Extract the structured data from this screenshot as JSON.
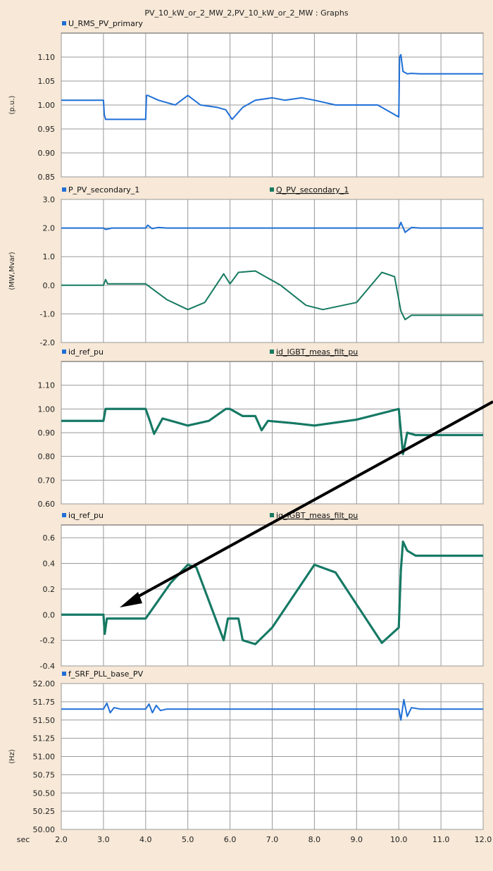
{
  "window": {
    "title": "PV_10_kW_or_2_MW_2,PV_10_kW_or_2_MW : Graphs"
  },
  "colors": {
    "blue": "#1f6fd6",
    "green": "#167a60",
    "grid": "#9a9a9a",
    "panel": "#ffffff",
    "background": "#f7e8d7"
  },
  "chart_data": [
    {
      "type": "line",
      "ylabel": "(p.u.)",
      "ylim": [
        0.85,
        1.15
      ],
      "yticks": [
        0.85,
        0.9,
        0.95,
        1.0,
        1.05,
        1.1
      ],
      "ytick_labels": [
        "0.85",
        "0.90",
        "0.95",
        "1.00",
        "1.05",
        "1.10"
      ],
      "series": [
        {
          "name": "U_RMS_PV_primary",
          "color": "#1f6fd6",
          "x": [
            2.0,
            3.0,
            3.02,
            3.05,
            4.0,
            4.02,
            4.05,
            4.3,
            4.7,
            5.0,
            5.3,
            5.7,
            5.9,
            6.05,
            6.1,
            6.3,
            6.6,
            7.0,
            7.3,
            7.7,
            8.0,
            8.5,
            9.0,
            9.5,
            10.0,
            10.02,
            10.05,
            10.1,
            10.2,
            10.3,
            10.5,
            11.0,
            12.0
          ],
          "y": [
            1.01,
            1.01,
            0.98,
            0.97,
            0.97,
            1.02,
            1.02,
            1.01,
            1.0,
            1.02,
            1.0,
            0.995,
            0.99,
            0.97,
            0.975,
            0.995,
            1.01,
            1.015,
            1.01,
            1.015,
            1.01,
            1.0,
            1.0,
            1.0,
            0.975,
            1.1,
            1.105,
            1.07,
            1.065,
            1.066,
            1.065,
            1.065,
            1.065
          ]
        }
      ]
    },
    {
      "type": "line",
      "ylabel": "(MW,Mvar)",
      "ylim": [
        -2.0,
        3.0
      ],
      "yticks": [
        -2.0,
        -1.0,
        0.0,
        1.0,
        2.0,
        3.0
      ],
      "ytick_labels": [
        "-2.0",
        "-1.0",
        "0.0",
        "1.0",
        "2.0",
        "3.0"
      ],
      "series": [
        {
          "name": "P_PV_secondary_1",
          "color": "#1f6fd6",
          "x": [
            2.0,
            3.0,
            3.05,
            3.2,
            4.0,
            4.05,
            4.15,
            4.3,
            4.5,
            5.0,
            6.0,
            7.0,
            8.0,
            9.0,
            10.0,
            10.05,
            10.15,
            10.3,
            10.5,
            12.0
          ],
          "y": [
            2.0,
            2.0,
            1.95,
            2.0,
            2.0,
            2.1,
            1.98,
            2.02,
            2.0,
            2.0,
            2.0,
            2.0,
            2.0,
            2.0,
            2.0,
            2.2,
            1.85,
            2.02,
            2.0,
            2.0
          ]
        },
        {
          "name": "Q_PV_secondary_1",
          "color": "#167a60",
          "x": [
            2.0,
            3.0,
            3.05,
            3.1,
            4.0,
            4.5,
            5.0,
            5.4,
            5.85,
            6.0,
            6.2,
            6.6,
            7.2,
            7.8,
            8.2,
            9.0,
            9.6,
            9.9,
            10.05,
            10.15,
            10.3,
            10.5,
            12.0
          ],
          "y": [
            0.0,
            0.0,
            0.2,
            0.05,
            0.05,
            -0.5,
            -0.85,
            -0.6,
            0.4,
            0.05,
            0.45,
            0.5,
            0.0,
            -0.7,
            -0.85,
            -0.6,
            0.45,
            0.3,
            -0.9,
            -1.2,
            -1.05,
            -1.05,
            -1.05
          ]
        }
      ]
    },
    {
      "type": "line",
      "ylabel": "",
      "ylim": [
        0.6,
        1.2
      ],
      "yticks": [
        0.6,
        0.7,
        0.8,
        0.9,
        1.0,
        1.1
      ],
      "ytick_labels": [
        "0.60",
        "0.70",
        "0.80",
        "0.90",
        "1.00",
        "1.10"
      ],
      "series": [
        {
          "name": "id_ref_pu",
          "color": "#1f6fd6",
          "x": [
            2.0,
            3.0,
            3.05,
            4.0,
            4.1,
            4.2,
            4.4,
            5.0,
            5.5,
            5.9,
            6.0,
            6.3,
            6.6,
            6.75,
            6.9,
            7.5,
            8.0,
            9.0,
            10.0,
            10.1,
            10.2,
            10.4,
            12.0
          ],
          "y": [
            0.95,
            0.95,
            1.0,
            1.0,
            0.95,
            0.895,
            0.96,
            0.93,
            0.95,
            1.0,
            1.0,
            0.97,
            0.97,
            0.91,
            0.95,
            0.94,
            0.93,
            0.955,
            1.0,
            0.81,
            0.9,
            0.89,
            0.89
          ]
        },
        {
          "name": "id_IGBT_meas_filt_pu",
          "color": "#167a60",
          "x": [
            2.0,
            3.0,
            3.05,
            4.0,
            4.1,
            4.2,
            4.4,
            5.0,
            5.5,
            5.9,
            6.0,
            6.3,
            6.6,
            6.75,
            6.9,
            7.5,
            8.0,
            9.0,
            10.0,
            10.1,
            10.2,
            10.4,
            12.0
          ],
          "y": [
            0.95,
            0.95,
            1.0,
            1.0,
            0.95,
            0.895,
            0.96,
            0.93,
            0.95,
            1.0,
            1.0,
            0.97,
            0.97,
            0.91,
            0.95,
            0.94,
            0.93,
            0.955,
            1.0,
            0.81,
            0.9,
            0.89,
            0.89
          ]
        }
      ]
    },
    {
      "type": "line",
      "ylabel": "",
      "ylim": [
        -0.4,
        0.7
      ],
      "yticks": [
        -0.4,
        -0.2,
        0.0,
        0.2,
        0.4,
        0.6
      ],
      "ytick_labels": [
        "-0.4",
        "-0.2",
        "0.0",
        "0.2",
        "0.4",
        "0.6"
      ],
      "series": [
        {
          "name": "iq_ref_pu",
          "color": "#1f6fd6",
          "x": [
            2.0,
            3.0,
            3.03,
            3.08,
            4.0,
            4.6,
            5.0,
            5.2,
            5.85,
            5.95,
            6.2,
            6.3,
            6.6,
            7.0,
            8.0,
            8.5,
            9.6,
            10.0,
            10.05,
            10.1,
            10.2,
            10.4,
            12.0
          ],
          "y": [
            0.0,
            0.0,
            -0.15,
            -0.03,
            -0.03,
            0.25,
            0.39,
            0.37,
            -0.2,
            -0.03,
            -0.03,
            -0.2,
            -0.23,
            -0.1,
            0.39,
            0.33,
            -0.22,
            -0.1,
            0.35,
            0.57,
            0.5,
            0.46,
            0.46
          ]
        },
        {
          "name": "iq_IGBT_meas_filt_pu",
          "color": "#167a60",
          "x": [
            2.0,
            3.0,
            3.03,
            3.08,
            4.0,
            4.6,
            5.0,
            5.2,
            5.85,
            5.95,
            6.2,
            6.3,
            6.6,
            7.0,
            8.0,
            8.5,
            9.6,
            10.0,
            10.05,
            10.1,
            10.2,
            10.4,
            12.0
          ],
          "y": [
            0.0,
            0.0,
            -0.15,
            -0.03,
            -0.03,
            0.25,
            0.39,
            0.37,
            -0.2,
            -0.03,
            -0.03,
            -0.2,
            -0.23,
            -0.1,
            0.39,
            0.33,
            -0.22,
            -0.1,
            0.35,
            0.57,
            0.5,
            0.46,
            0.46
          ]
        }
      ]
    },
    {
      "type": "line",
      "ylabel": "(Hz)",
      "ylim": [
        50.0,
        52.0
      ],
      "yticks": [
        50.0,
        50.25,
        50.5,
        50.75,
        51.0,
        51.25,
        51.5,
        51.75,
        52.0
      ],
      "ytick_labels": [
        "50.00",
        "50.25",
        "50.50",
        "50.75",
        "51.00",
        "51.25",
        "51.50",
        "51.75",
        "52.00"
      ],
      "xticks": [
        2.0,
        3.0,
        4.0,
        5.0,
        6.0,
        7.0,
        8.0,
        9.0,
        10.0,
        11.0,
        12.0
      ],
      "xtick_labels": [
        "2.0",
        "3.0",
        "4.0",
        "5.0",
        "6.0",
        "7.0",
        "8.0",
        "9.0",
        "10.0",
        "11.0",
        "12.0"
      ],
      "xlabel": "sec",
      "series": [
        {
          "name": "f_SRF_PLL_base_PV",
          "color": "#1f6fd6",
          "x": [
            2.0,
            3.0,
            3.08,
            3.16,
            3.25,
            3.4,
            4.0,
            4.08,
            4.16,
            4.25,
            4.35,
            4.5,
            10.0,
            10.05,
            10.12,
            10.2,
            10.3,
            10.5,
            12.0
          ],
          "y": [
            51.65,
            51.65,
            51.73,
            51.6,
            51.67,
            51.65,
            51.65,
            51.72,
            51.6,
            51.7,
            51.63,
            51.65,
            51.65,
            51.5,
            51.78,
            51.55,
            51.67,
            51.65,
            51.65
          ]
        }
      ]
    }
  ],
  "xlim": [
    2.0,
    12.0
  ]
}
